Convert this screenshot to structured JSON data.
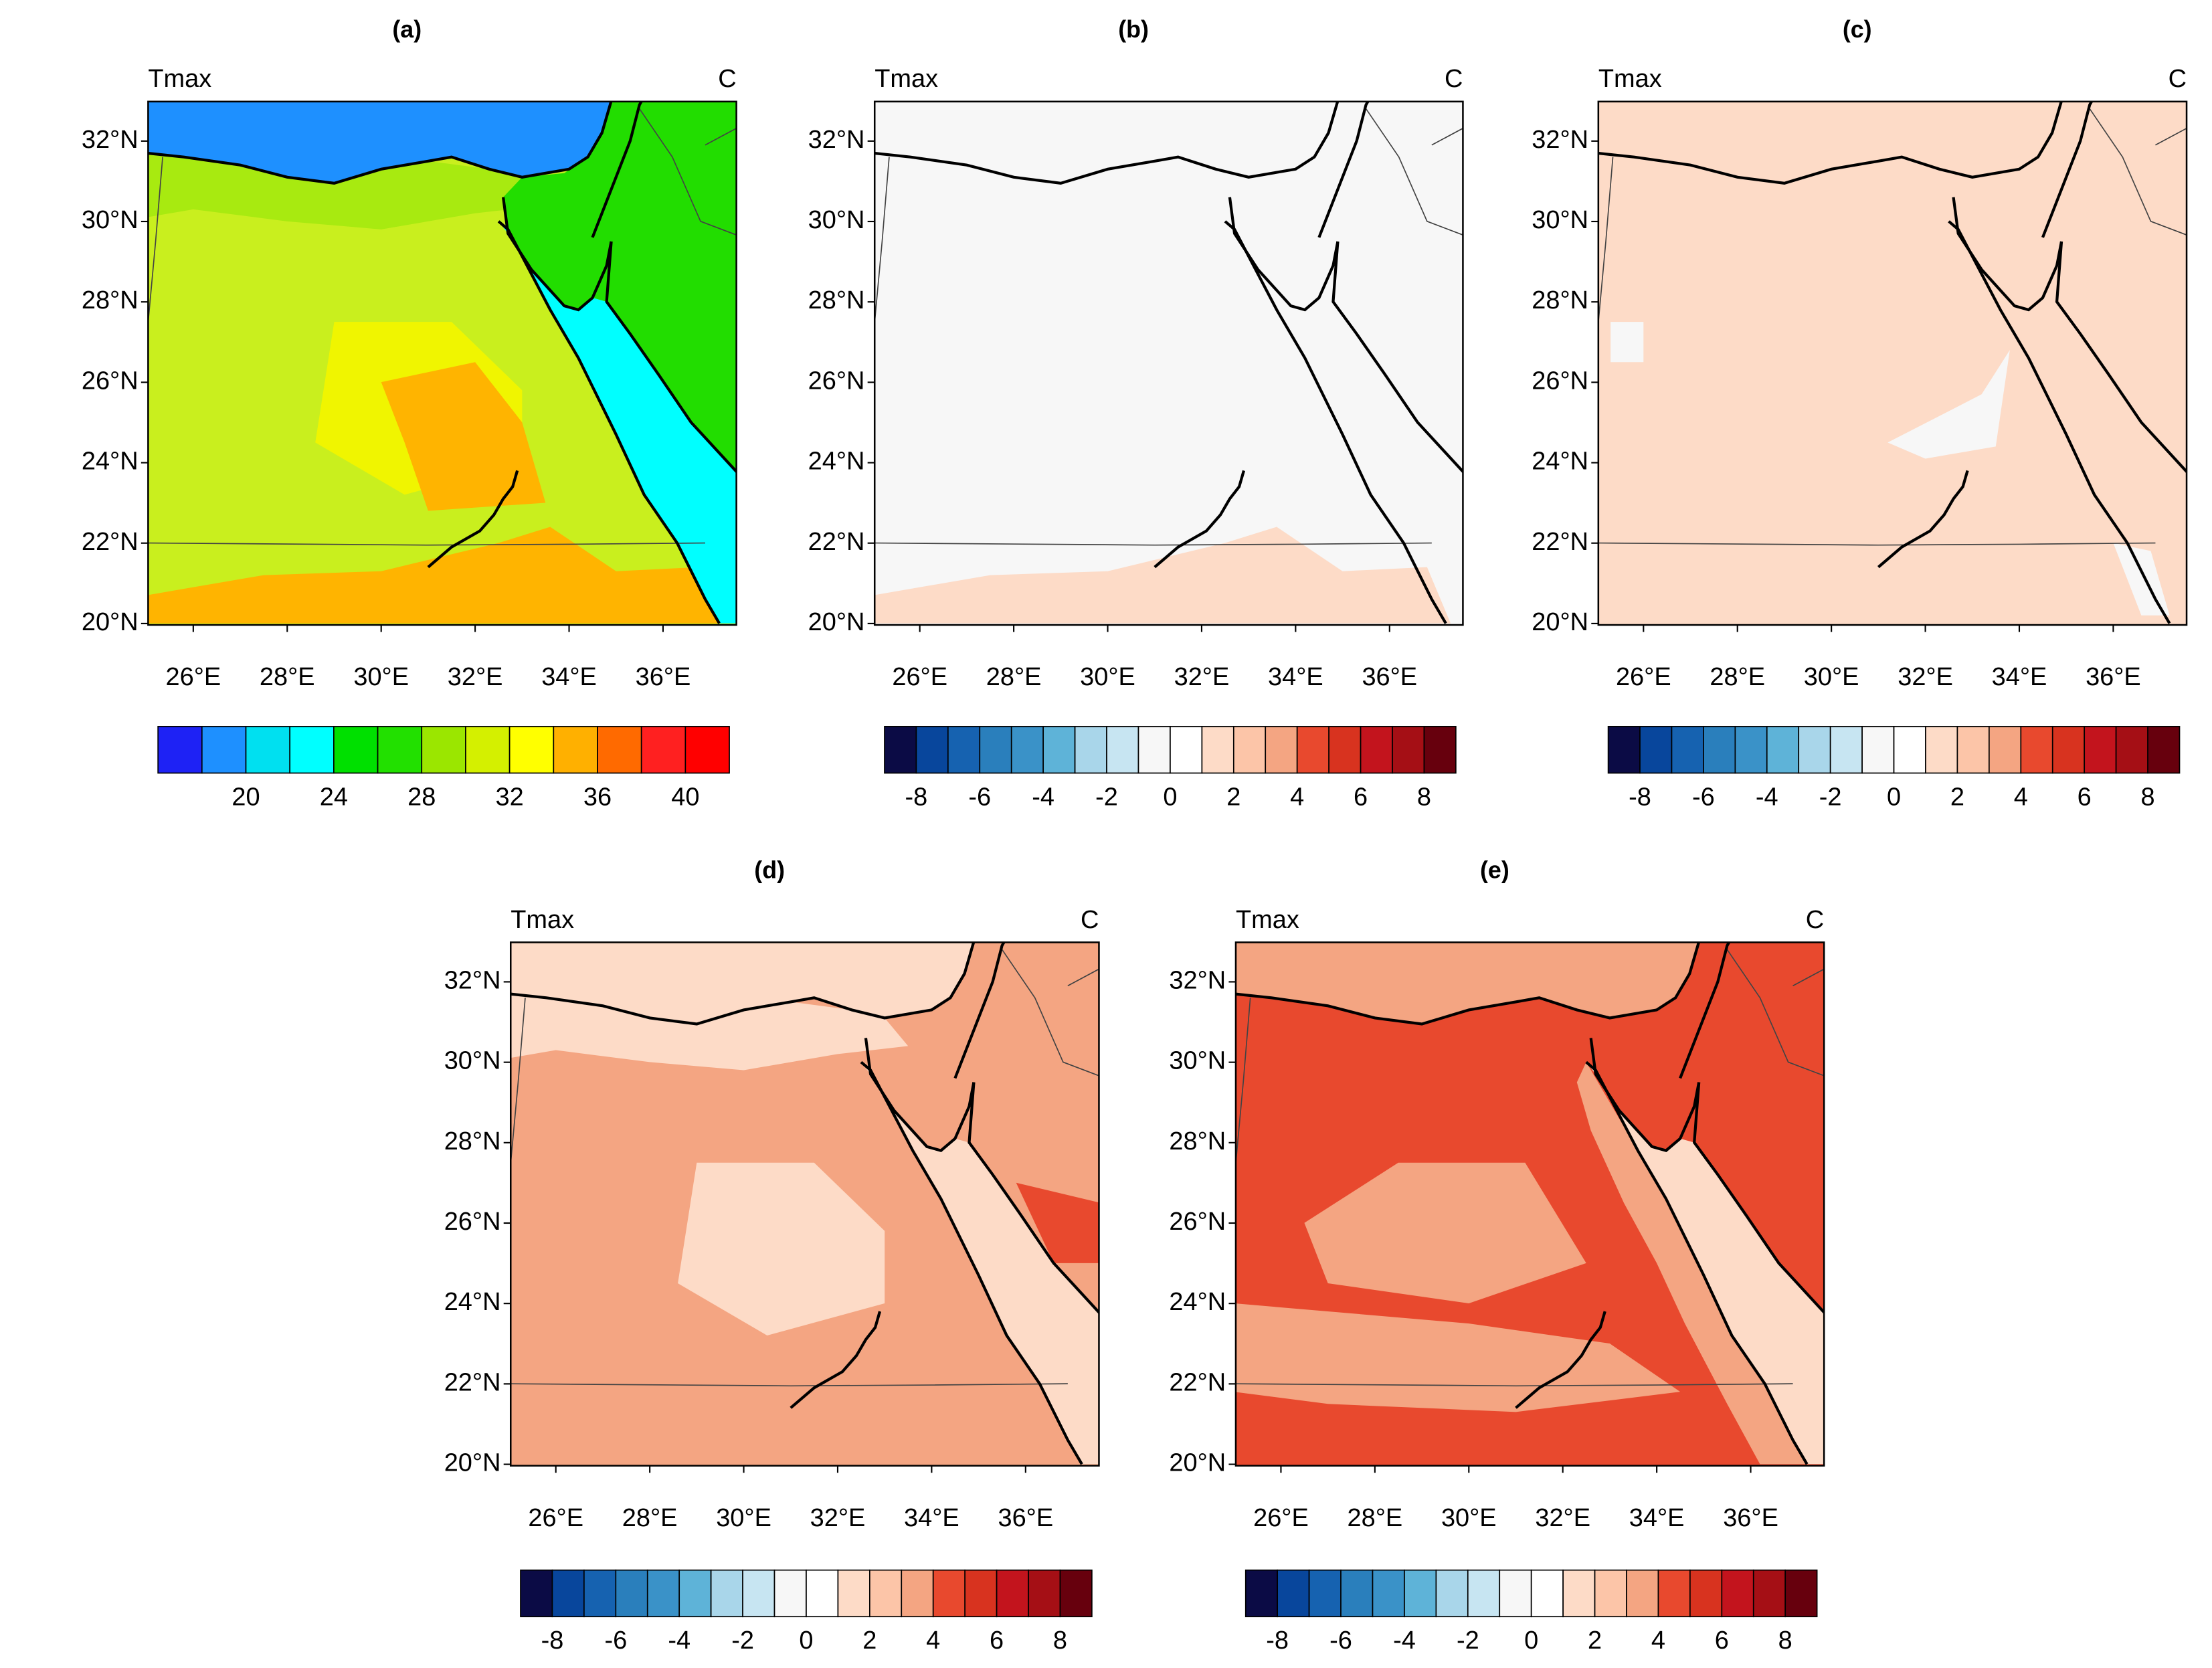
{
  "panels": [
    {
      "label": "(a)",
      "title_left": "Tmax",
      "title_right": "C",
      "lat_labels": [
        "32°N",
        "30°N",
        "28°N",
        "26°N",
        "24°N",
        "22°N",
        "20°N"
      ],
      "lon_labels": [
        "26°E",
        "28°E",
        "30°E",
        "32°E",
        "34°E",
        "36°E"
      ],
      "colorbar": {
        "colors": [
          "#1e22f5",
          "#1e90ff",
          "#00e0f0",
          "#00ffff",
          "#00e000",
          "#22e000",
          "#9be600",
          "#d4f000",
          "#ffff00",
          "#ffb000",
          "#ff6a00",
          "#ff2020",
          "#ff0000"
        ],
        "labels": [
          "20",
          "24",
          "28",
          "32",
          "36",
          "40"
        ]
      }
    },
    {
      "label": "(b)",
      "title_left": "Tmax",
      "title_right": "C",
      "lat_labels": [
        "32°N",
        "30°N",
        "28°N",
        "26°N",
        "24°N",
        "22°N",
        "20°N"
      ],
      "lon_labels": [
        "26°E",
        "28°E",
        "30°E",
        "32°E",
        "34°E",
        "36°E"
      ],
      "colorbar": {
        "colors": [
          "#0b0b45",
          "#08469c",
          "#1662b0",
          "#2a7fbc",
          "#3a92c8",
          "#5eb3d8",
          "#a9d6ea",
          "#c7e5f2",
          "#f7f7f7",
          "#ffffff",
          "#fddbc7",
          "#fcc5a8",
          "#f4a582",
          "#e8492e",
          "#d8331f",
          "#c3141d",
          "#a50f15",
          "#67000d"
        ],
        "labels": [
          "-8",
          "-6",
          "-4",
          "-2",
          "0",
          "2",
          "4",
          "6",
          "8"
        ]
      }
    },
    {
      "label": "(c)",
      "title_left": "Tmax",
      "title_right": "C",
      "lat_labels": [
        "32°N",
        "30°N",
        "28°N",
        "26°N",
        "24°N",
        "22°N",
        "20°N"
      ],
      "lon_labels": [
        "26°E",
        "28°E",
        "30°E",
        "32°E",
        "34°E",
        "36°E"
      ],
      "colorbar": {
        "colors": [
          "#0b0b45",
          "#08469c",
          "#1662b0",
          "#2a7fbc",
          "#3a92c8",
          "#5eb3d8",
          "#a9d6ea",
          "#c7e5f2",
          "#f7f7f7",
          "#ffffff",
          "#fddbc7",
          "#fcc5a8",
          "#f4a582",
          "#e8492e",
          "#d8331f",
          "#c3141d",
          "#a50f15",
          "#67000d"
        ],
        "labels": [
          "-8",
          "-6",
          "-4",
          "-2",
          "0",
          "2",
          "4",
          "6",
          "8"
        ]
      }
    },
    {
      "label": "(d)",
      "title_left": "Tmax",
      "title_right": "C",
      "lat_labels": [
        "32°N",
        "30°N",
        "28°N",
        "26°N",
        "24°N",
        "22°N",
        "20°N"
      ],
      "lon_labels": [
        "26°E",
        "28°E",
        "30°E",
        "32°E",
        "34°E",
        "36°E"
      ],
      "colorbar": {
        "colors": [
          "#0b0b45",
          "#08469c",
          "#1662b0",
          "#2a7fbc",
          "#3a92c8",
          "#5eb3d8",
          "#a9d6ea",
          "#c7e5f2",
          "#f7f7f7",
          "#ffffff",
          "#fddbc7",
          "#fcc5a8",
          "#f4a582",
          "#e8492e",
          "#d8331f",
          "#c3141d",
          "#a50f15",
          "#67000d"
        ],
        "labels": [
          "-8",
          "-6",
          "-4",
          "-2",
          "0",
          "2",
          "4",
          "6",
          "8"
        ]
      }
    },
    {
      "label": "(e)",
      "title_left": "Tmax",
      "title_right": "C",
      "lat_labels": [
        "32°N",
        "30°N",
        "28°N",
        "26°N",
        "24°N",
        "22°N",
        "20°N"
      ],
      "lon_labels": [
        "26°E",
        "28°E",
        "30°E",
        "32°E",
        "34°E",
        "36°E"
      ],
      "colorbar": {
        "colors": [
          "#0b0b45",
          "#08469c",
          "#1662b0",
          "#2a7fbc",
          "#3a92c8",
          "#5eb3d8",
          "#a9d6ea",
          "#c7e5f2",
          "#f7f7f7",
          "#ffffff",
          "#fddbc7",
          "#fcc5a8",
          "#f4a582",
          "#e8492e",
          "#d8331f",
          "#c3141d",
          "#a50f15",
          "#67000d"
        ],
        "labels": [
          "-8",
          "-6",
          "-4",
          "-2",
          "0",
          "2",
          "4",
          "6",
          "8"
        ]
      }
    }
  ]
}
